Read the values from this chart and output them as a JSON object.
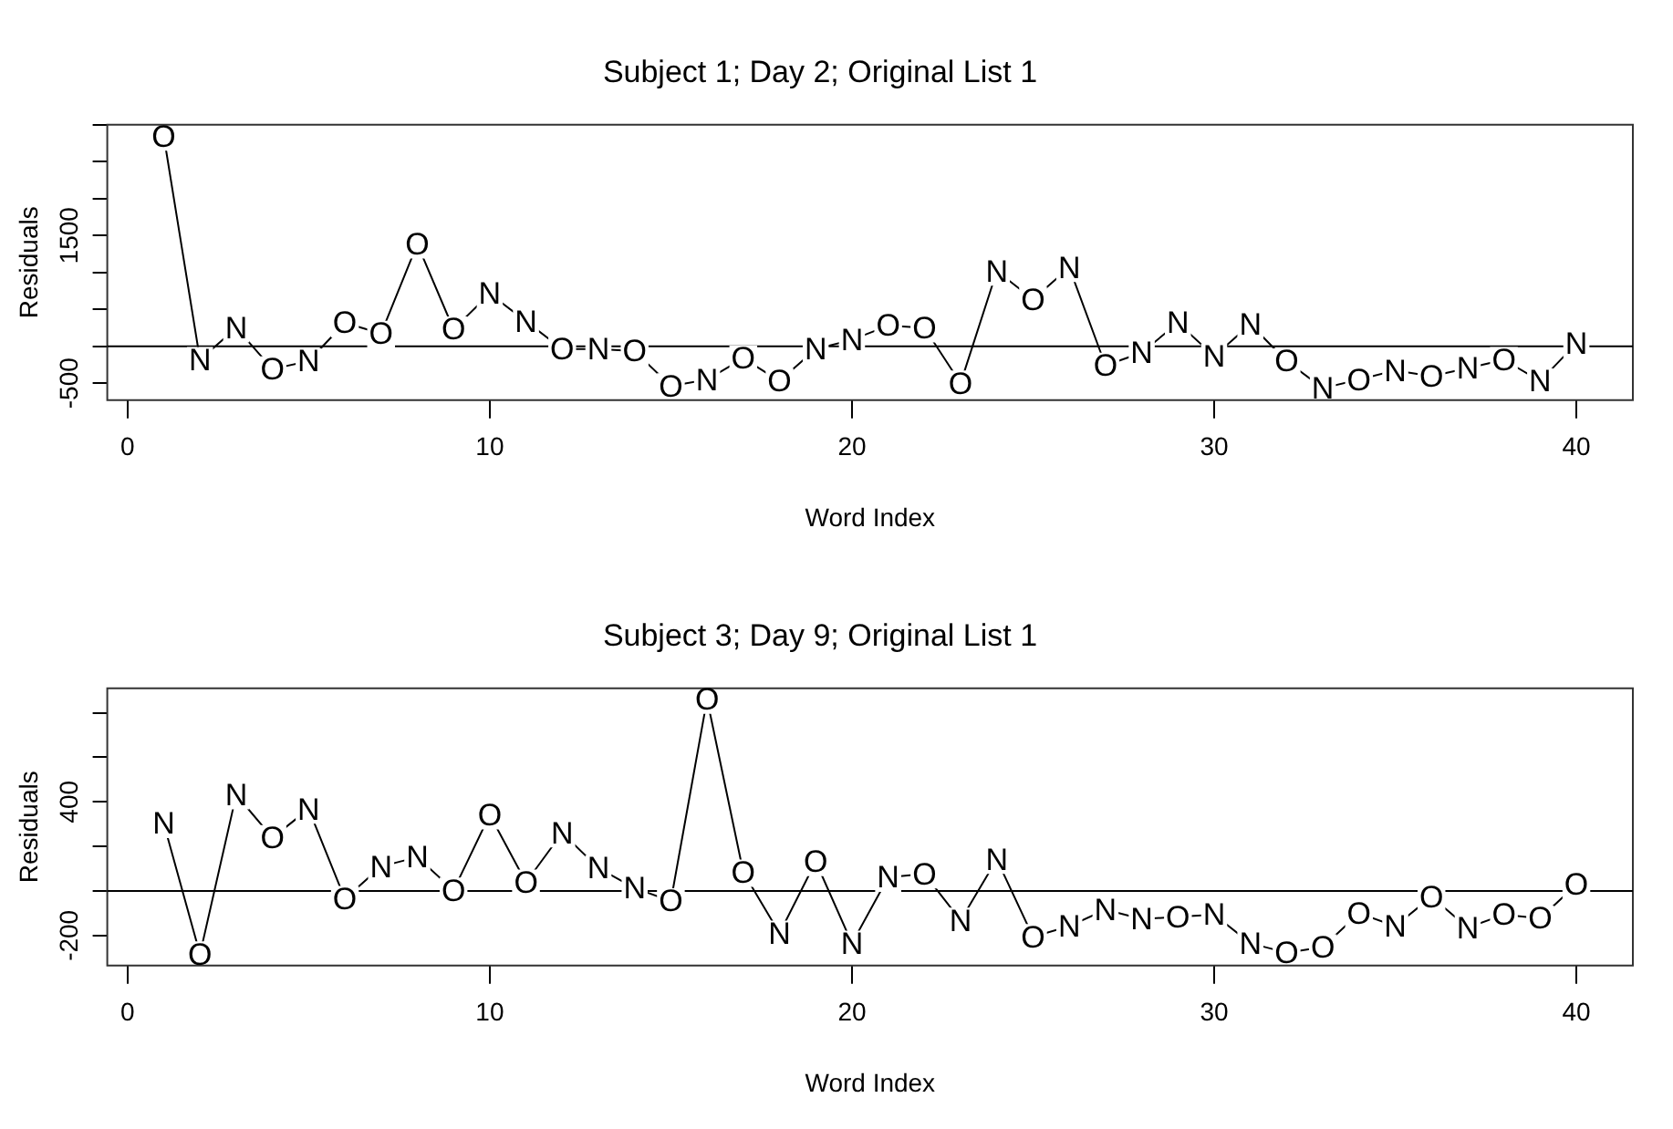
{
  "chart_data": [
    {
      "type": "line",
      "title": "Subject 1; Day 2; Original List 1",
      "xlabel": "Word Index",
      "ylabel": "Residuals",
      "grid": false,
      "legend": false,
      "x": [
        1,
        2,
        3,
        4,
        5,
        6,
        7,
        8,
        9,
        10,
        11,
        12,
        13,
        14,
        15,
        16,
        17,
        18,
        19,
        20,
        21,
        22,
        23,
        24,
        25,
        26,
        27,
        28,
        29,
        30,
        31,
        32,
        33,
        34,
        35,
        36,
        37,
        38,
        39,
        40
      ],
      "series": [
        {
          "color": "#000000",
          "values": [
            2846,
            -183,
            250,
            -308,
            -202,
            317,
            173,
            1385,
            231,
            712,
            337,
            -38,
            -38,
            -67,
            -538,
            -452,
            -163,
            -471,
            -38,
            87,
            279,
            250,
            -500,
            1019,
            635,
            1067,
            -260,
            -87,
            317,
            -135,
            298,
            -202,
            -567,
            -452,
            -327,
            -404,
            -298,
            -183,
            -471,
            38
          ],
          "value_labels": [
            "O",
            "N",
            "N",
            "O",
            "N",
            "O",
            "O",
            "O",
            "O",
            "N",
            "N",
            "O",
            "N",
            "O",
            "O",
            "N",
            "O",
            "O",
            "N",
            "N",
            "O",
            "O",
            "O",
            "N",
            "O",
            "N",
            "O",
            "N",
            "N",
            "N",
            "N",
            "O",
            "N",
            "O",
            "N",
            "O",
            "N",
            "O",
            "N",
            "N"
          ]
        }
      ],
      "xlim": [
        -0.56,
        41.56
      ],
      "xticks": [
        0,
        10,
        20,
        30,
        40
      ],
      "ylim": [
        -730,
        3000
      ],
      "yticks": [
        -500,
        {
          "value": 0,
          "label": null
        },
        {
          "value": 500,
          "label": null
        },
        {
          "value": 1000,
          "label": null
        },
        1500,
        {
          "value": 2000,
          "label": null
        },
        {
          "value": 2500,
          "label": null
        },
        {
          "value": 3000,
          "label": null
        }
      ],
      "ref_lines": [
        {
          "axis": "y",
          "value": 0,
          "color": "#000000"
        }
      ]
    },
    {
      "type": "line",
      "title": "Subject 3; Day 9; Original List 1",
      "xlabel": "Word Index",
      "ylabel": "Residuals",
      "grid": false,
      "legend": false,
      "x": [
        1,
        2,
        3,
        4,
        5,
        6,
        7,
        8,
        9,
        10,
        11,
        12,
        13,
        14,
        15,
        16,
        17,
        18,
        19,
        20,
        21,
        22,
        23,
        24,
        25,
        26,
        27,
        28,
        29,
        30,
        31,
        32,
        33,
        34,
        35,
        36,
        37,
        38,
        39,
        40
      ],
      "series": [
        {
          "color": "#000000",
          "values": [
            303,
            -284,
            432,
            239,
            368,
            -35,
            110,
            152,
            3,
            342,
            39,
            261,
            103,
            13,
            -45,
            861,
            84,
            -190,
            132,
            -235,
            61,
            77,
            -132,
            142,
            -206,
            -158,
            -84,
            -126,
            -116,
            -106,
            -235,
            -277,
            -252,
            -100,
            -158,
            -26,
            -165,
            -106,
            -123,
            29
          ],
          "value_labels": [
            "N",
            "O",
            "N",
            "O",
            "N",
            "O",
            "N",
            "N",
            "O",
            "O",
            "O",
            "N",
            "N",
            "N",
            "O",
            "O",
            "O",
            "N",
            "O",
            "N",
            "N",
            "O",
            "N",
            "N",
            "O",
            "N",
            "N",
            "N",
            "O",
            "N",
            "N",
            "O",
            "O",
            "O",
            "N",
            "O",
            "N",
            "O",
            "O",
            "O"
          ]
        }
      ],
      "xlim": [
        -0.56,
        41.56
      ],
      "xticks": [
        0,
        10,
        20,
        30,
        40
      ],
      "ylim": [
        -335,
        910
      ],
      "yticks": [
        -200,
        {
          "value": 0,
          "label": null
        },
        {
          "value": 200,
          "label": null
        },
        400,
        {
          "value": 600,
          "label": null
        },
        {
          "value": 800,
          "label": null
        }
      ],
      "ref_lines": [
        {
          "axis": "y",
          "value": 0,
          "color": "#000000"
        }
      ]
    }
  ]
}
